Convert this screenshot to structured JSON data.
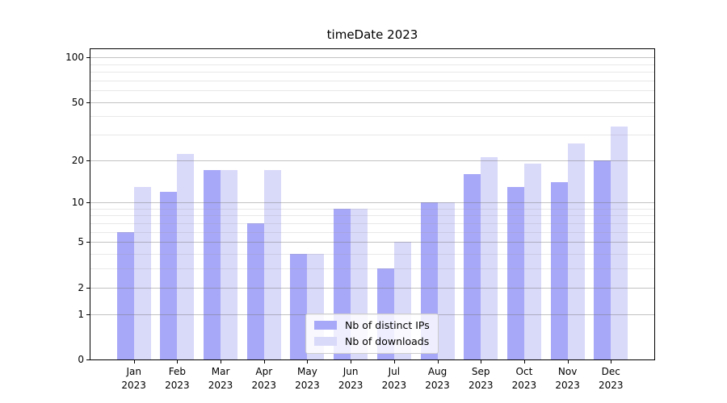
{
  "title": "timeDate 2023",
  "chart_data": {
    "type": "bar",
    "title": "timeDate 2023",
    "scale": "log1p",
    "grid": "horizontal-major-and-minor",
    "legend_position": "bottom-center",
    "categories": [
      "Jan",
      "Feb",
      "Mar",
      "Apr",
      "May",
      "Jun",
      "Jul",
      "Aug",
      "Sep",
      "Oct",
      "Nov",
      "Dec"
    ],
    "year": "2023",
    "series": [
      {
        "name": "Nb of distinct IPs",
        "color": "#a8a8f8",
        "values": [
          6,
          12,
          17,
          7,
          4,
          9,
          3,
          10,
          16,
          13,
          14,
          20
        ]
      },
      {
        "name": "Nb of downloads",
        "color": "#d9d9fa",
        "values": [
          13,
          22,
          17,
          17,
          4,
          9,
          5,
          10,
          21,
          19,
          26,
          34
        ]
      }
    ],
    "xlabel": "",
    "ylabel": "",
    "ylim": [
      0,
      113.3
    ],
    "y_ticks_major": [
      0,
      1,
      2,
      5,
      10,
      20,
      50,
      100
    ],
    "y_ticks_minor": [
      3,
      4,
      6,
      7,
      8,
      9,
      30,
      40,
      60,
      70,
      80,
      90
    ]
  },
  "colors": {
    "axis": "#000000",
    "grid_major": "#c0c0c0",
    "grid_minor": "#e9e9e9",
    "background": "#ffffff",
    "legend_border": "#cccccc"
  }
}
